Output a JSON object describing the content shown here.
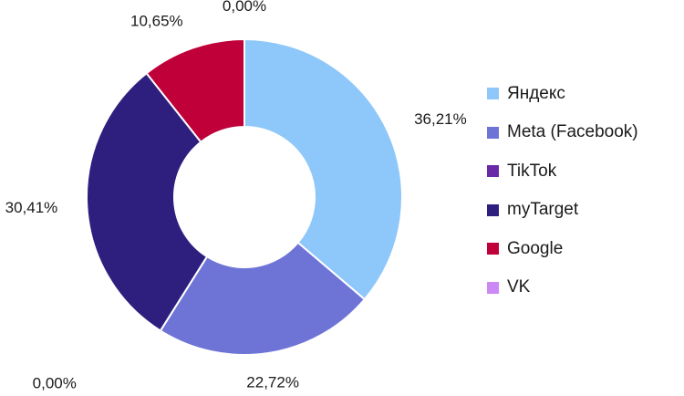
{
  "chart_data": {
    "type": "pie",
    "variant": "donut",
    "title": "",
    "legend_position": "right",
    "slices": [
      {
        "name": "Яндекс",
        "value": 36.21,
        "label": "36,21%",
        "color": "#8ec7f9"
      },
      {
        "name": "Meta (Facebook)",
        "value": 22.72,
        "label": "22,72%",
        "color": "#6e74d6"
      },
      {
        "name": "TikTok",
        "value": 0.0,
        "label": "0,00%",
        "color": "#6a2aa8"
      },
      {
        "name": "myTarget",
        "value": 30.41,
        "label": "30,41%",
        "color": "#2e1f7e"
      },
      {
        "name": "Google",
        "value": 10.65,
        "label": "10,65%",
        "color": "#c00038"
      },
      {
        "name": "VK",
        "value": 0.0,
        "label": "0,00%",
        "color": "#cc88f5"
      }
    ]
  }
}
